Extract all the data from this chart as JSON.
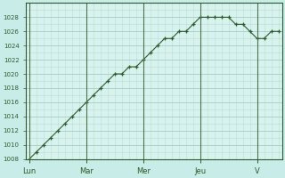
{
  "background_color": "#c8ece8",
  "plot_bg_color": "#d8f2ee",
  "line_color": "#2a5c2a",
  "marker_color": "#2a5c2a",
  "grid_major_color": "#a8ccc8",
  "grid_minor_color": "#b8dcd8",
  "axis_label_color": "#2a5c2a",
  "tick_label_color": "#2a5c2a",
  "day_labels": [
    "Lun",
    "Mar",
    "Mer",
    "Jeu",
    "V"
  ],
  "day_positions": [
    0,
    8,
    16,
    24,
    32
  ],
  "ylim": [
    1008,
    1030
  ],
  "ytick_labels": [
    "1008",
    "1010",
    "1012",
    "1014",
    "1016",
    "1018",
    "1020",
    "1022",
    "1024",
    "1026",
    "1028"
  ],
  "ytick_values": [
    1008,
    1010,
    1012,
    1014,
    1016,
    1018,
    1020,
    1022,
    1024,
    1026,
    1028
  ],
  "x_data": [
    0,
    1,
    2,
    3,
    4,
    5,
    6,
    7,
    8,
    9,
    10,
    11,
    12,
    13,
    14,
    15,
    16,
    17,
    18,
    19,
    20,
    21,
    22,
    23,
    24,
    25,
    26,
    27,
    28,
    29,
    30,
    31,
    32,
    33,
    34,
    35
  ],
  "y_data": [
    1008,
    1009,
    1010,
    1011,
    1012,
    1013,
    1014,
    1015,
    1016,
    1017,
    1018,
    1019,
    1020,
    1020,
    1021,
    1021,
    1022,
    1023,
    1024,
    1025,
    1025,
    1026,
    1026,
    1027,
    1028,
    1028,
    1028,
    1028,
    1028,
    1027,
    1027,
    1026,
    1025,
    1025,
    1026,
    1026
  ]
}
